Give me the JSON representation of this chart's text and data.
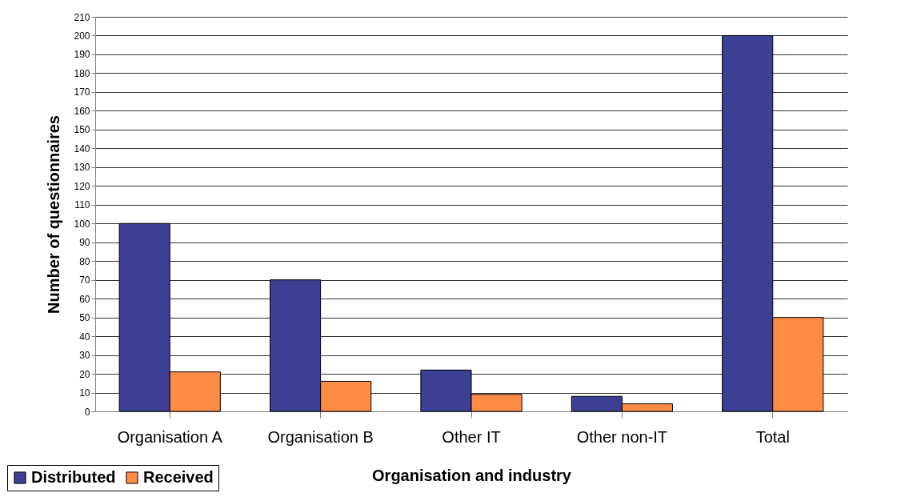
{
  "chart_data": {
    "type": "bar",
    "xlabel": "Organisation and industry",
    "ylabel": "Number of questionnaires",
    "categories": [
      "Organisation A",
      "Organisation B",
      "Other IT",
      "Other non-IT",
      "Total"
    ],
    "series": [
      {
        "name": "Distributed",
        "color": "#3c3f94",
        "values": [
          100,
          70,
          22,
          8,
          200
        ]
      },
      {
        "name": "Received",
        "color": "#ff8c45",
        "values": [
          21,
          16,
          9,
          4,
          50
        ]
      }
    ],
    "ylim": [
      0,
      210
    ],
    "yticks": [
      0,
      10,
      20,
      30,
      40,
      50,
      60,
      70,
      80,
      90,
      100,
      110,
      120,
      130,
      140,
      150,
      160,
      170,
      180,
      190,
      200,
      210
    ],
    "grid": "y",
    "legend": "bottom left"
  }
}
